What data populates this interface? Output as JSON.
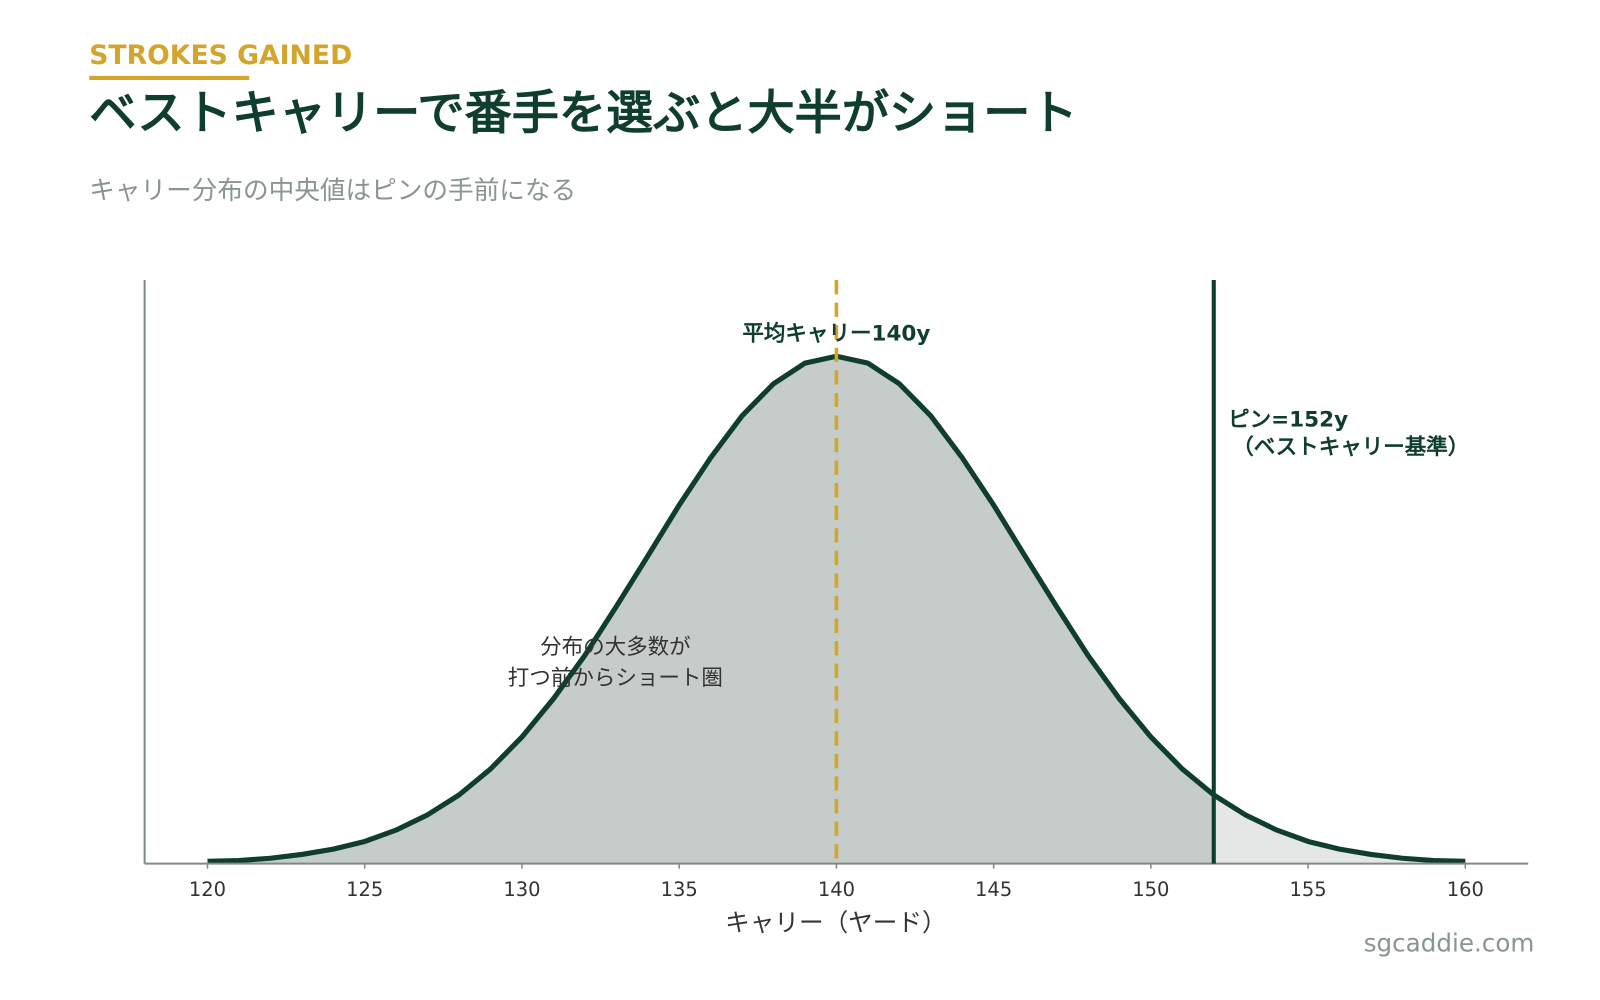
{
  "chart_data": {
    "type": "line",
    "kicker": "STROKES GAINED",
    "title": "ベストキャリーで番手を選ぶと大半がショート",
    "subtitle": "キャリー分布の中央値はピンの手前になる",
    "xlabel": "キャリー（ヤード）",
    "x": [
      120,
      121,
      122,
      123,
      124,
      125,
      126,
      127,
      128,
      129,
      130,
      131,
      132,
      133,
      134,
      135,
      136,
      137,
      138,
      139,
      140,
      141,
      142,
      143,
      144,
      145,
      146,
      147,
      148,
      149,
      150,
      151,
      152,
      153,
      154,
      155,
      156,
      157,
      158,
      159,
      160
    ],
    "series": [
      {
        "color": "#0f3d2e",
        "values": [
          0.0003,
          0.0004,
          0.0007,
          0.0012,
          0.0019,
          0.0029,
          0.0044,
          0.0064,
          0.009,
          0.0124,
          0.0166,
          0.0216,
          0.0273,
          0.0337,
          0.0403,
          0.047,
          0.0532,
          0.0587,
          0.0629,
          0.0656,
          0.0665,
          0.0656,
          0.0629,
          0.0587,
          0.0532,
          0.047,
          0.0403,
          0.0337,
          0.0273,
          0.0216,
          0.0166,
          0.0124,
          0.009,
          0.0064,
          0.0044,
          0.0029,
          0.0019,
          0.0012,
          0.0007,
          0.0004,
          0.0003
        ]
      }
    ],
    "fill_color": "#c5ccc9",
    "tail_color": "#e4e7e5",
    "xlim": [
      118,
      162
    ],
    "xticks": [
      120,
      125,
      130,
      135,
      140,
      145,
      150,
      155,
      160
    ],
    "ylim": [
      0,
      0.0765
    ],
    "mean": {
      "value": 140,
      "label": "平均キャリー140y",
      "color": "#d4a52c"
    },
    "pin": {
      "value": 152,
      "label": "ピン=152y",
      "sublabel": "（ベストキャリー基準）",
      "color": "#0f3d2e"
    },
    "note": [
      "分布の大多数が",
      "打つ前からショート圏"
    ]
  },
  "footer": "sgcaddie.com"
}
